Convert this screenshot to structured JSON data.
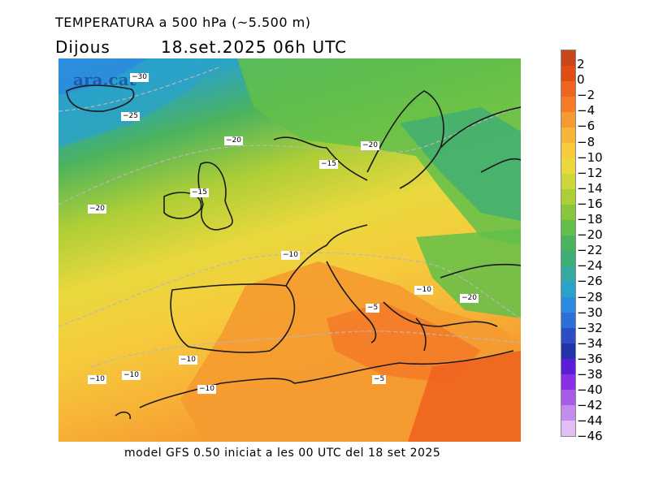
{
  "header": {
    "title": "TEMPERATURA a 500 hPa (~5.500 m)",
    "day": "Dijous",
    "datetime": "18.set.2025 06h UTC"
  },
  "watermark": "ara.cat",
  "footer": "model GFS 0.50 iniciat a les 00 UTC del 18 set 2025",
  "legend": {
    "labels": [
      "2",
      "0",
      "−2",
      "−4",
      "−6",
      "−8",
      "−10",
      "−12",
      "−14",
      "−16",
      "−18",
      "−20",
      "−22",
      "−24",
      "−26",
      "−28",
      "−30",
      "−32",
      "−34",
      "−36",
      "−38",
      "−40",
      "−42",
      "−44",
      "−46"
    ],
    "colors": [
      "#c8461a",
      "#e04e14",
      "#f06420",
      "#f47c28",
      "#f59a30",
      "#f7b537",
      "#f6cc3c",
      "#e9d83e",
      "#cfd63c",
      "#aece36",
      "#88c63e",
      "#62c04a",
      "#4bb35e",
      "#3fae76",
      "#35a8a2",
      "#2ba3c8",
      "#2c8be0",
      "#2d6ed8",
      "#2b4ec4",
      "#2234a8",
      "#5a1ed8",
      "#8a2ee8",
      "#a85ae8",
      "#c48aec",
      "#e0c0f4"
    ]
  },
  "contour_labels": [
    {
      "text": "−30",
      "name": "label-minus-30"
    },
    {
      "text": "−25",
      "name": "label-minus-25-iceland"
    },
    {
      "text": "−20",
      "name": "label-minus-20-north-sea"
    },
    {
      "text": "−20",
      "name": "label-minus-20-scandinavia"
    },
    {
      "text": "−15",
      "name": "label-minus-15-baltic"
    },
    {
      "text": "−15",
      "name": "label-minus-15-ireland"
    },
    {
      "text": "−20",
      "name": "label-minus-20-atlantic"
    },
    {
      "text": "−10",
      "name": "label-minus-10-france"
    },
    {
      "text": "−10",
      "name": "label-minus-10-black-sea"
    },
    {
      "text": "−20",
      "name": "label-minus-20-turkey"
    },
    {
      "text": "−5",
      "name": "label-minus-5-ionian"
    },
    {
      "text": "−10",
      "name": "label-minus-10-spain"
    },
    {
      "text": "−10",
      "name": "label-minus-10-canaries"
    },
    {
      "text": "−10",
      "name": "label-minus-10-atlantic-south"
    },
    {
      "text": "−10",
      "name": "label-minus-10-morocco"
    },
    {
      "text": "−5",
      "name": "label-minus-5-libya"
    }
  ]
}
